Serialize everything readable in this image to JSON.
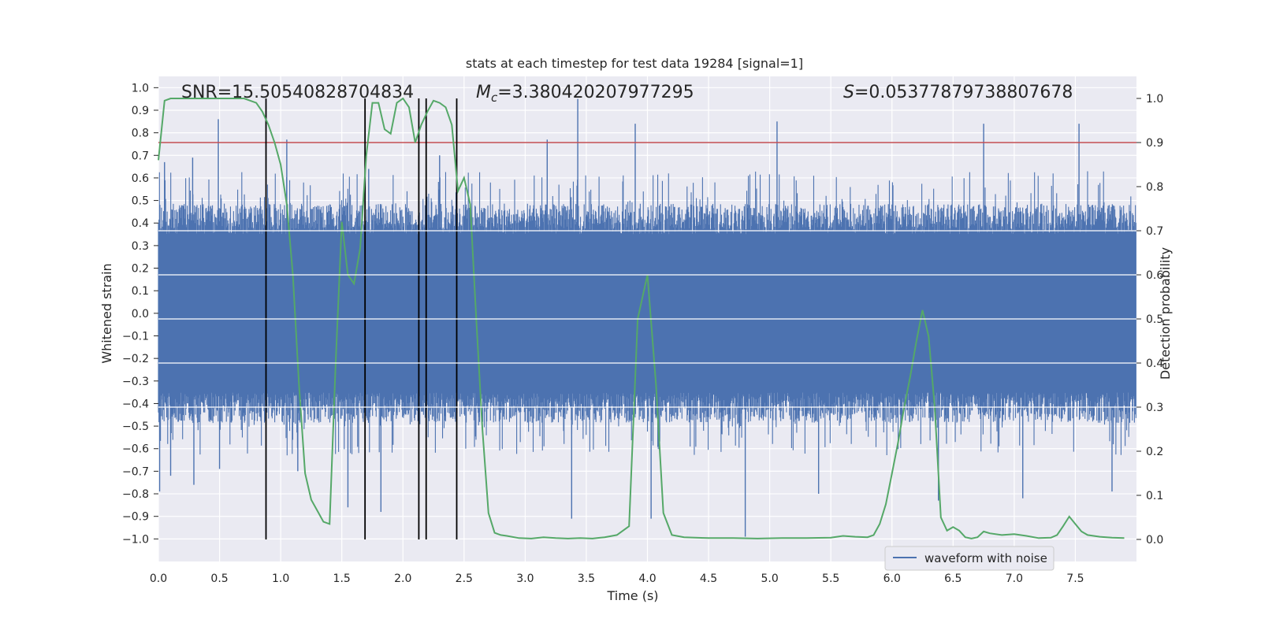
{
  "chart_data": {
    "type": "line",
    "title": "stats at each timestep for test data 19284 [signal=1]",
    "xlabel": "Time (s)",
    "ylabel": "Whitened strain",
    "y2label": "Detection probability",
    "xlim": [
      0.0,
      8.0
    ],
    "ylim": [
      -1.1,
      1.05
    ],
    "y2lim": [
      -0.05,
      1.05
    ],
    "xticks": [
      "0.0",
      "0.5",
      "1.0",
      "1.5",
      "2.0",
      "2.5",
      "3.0",
      "3.5",
      "4.0",
      "4.5",
      "5.0",
      "5.5",
      "6.0",
      "6.5",
      "7.0",
      "7.5"
    ],
    "yticks": [
      "−1.0",
      "−0.9",
      "−0.8",
      "−0.7",
      "−0.6",
      "−0.5",
      "−0.4",
      "−0.3",
      "−0.2",
      "−0.1",
      "0.0",
      "0.1",
      "0.2",
      "0.3",
      "0.4",
      "0.5",
      "0.6",
      "0.7",
      "0.8",
      "0.9",
      "1.0"
    ],
    "y2ticks": [
      "0.0",
      "0.1",
      "0.2",
      "0.3",
      "0.4",
      "0.5",
      "0.6",
      "0.7",
      "0.8",
      "0.9",
      "1.0"
    ],
    "annotations": {
      "snr": "SNR=15.50540828704834",
      "mc_symbol": "M",
      "mc_sub": "c",
      "mc_value": "=3.380420207977295",
      "s_symbol": "S",
      "s_value": "=0.05377879738807678"
    },
    "threshold": {
      "value": 0.9,
      "axis": "right",
      "color": "#c44e52"
    },
    "event_lines_x": [
      0.88,
      1.69,
      2.13,
      2.19,
      2.44
    ],
    "waveform": {
      "name": "waveform with noise",
      "color": "#4c72b0",
      "typical_envelope": 0.45,
      "spikes": [
        {
          "x": 0.01,
          "y": -0.79
        },
        {
          "x": 0.05,
          "y": 0.67
        },
        {
          "x": 0.1,
          "y": -0.72
        },
        {
          "x": 0.28,
          "y": 0.69
        },
        {
          "x": 0.29,
          "y": -0.76
        },
        {
          "x": 0.49,
          "y": 0.86
        },
        {
          "x": 0.5,
          "y": -0.69
        },
        {
          "x": 1.05,
          "y": 0.77
        },
        {
          "x": 1.14,
          "y": -0.7
        },
        {
          "x": 1.55,
          "y": -0.86
        },
        {
          "x": 1.72,
          "y": 0.64
        },
        {
          "x": 1.82,
          "y": -0.88
        },
        {
          "x": 2.3,
          "y": 0.7
        },
        {
          "x": 3.18,
          "y": 0.77
        },
        {
          "x": 3.38,
          "y": -0.91
        },
        {
          "x": 3.43,
          "y": 0.95
        },
        {
          "x": 3.9,
          "y": 0.84
        },
        {
          "x": 4.03,
          "y": -0.91
        },
        {
          "x": 4.8,
          "y": -0.99
        },
        {
          "x": 5.06,
          "y": 0.85
        },
        {
          "x": 5.4,
          "y": -0.8
        },
        {
          "x": 6.38,
          "y": -0.83
        },
        {
          "x": 6.75,
          "y": 0.84
        },
        {
          "x": 7.07,
          "y": -0.82
        },
        {
          "x": 7.53,
          "y": 0.84
        },
        {
          "x": 7.8,
          "y": -0.79
        }
      ]
    },
    "probability": {
      "color": "#55a868",
      "x": [
        0.0,
        0.05,
        0.1,
        0.2,
        0.3,
        0.4,
        0.5,
        0.6,
        0.7,
        0.8,
        0.85,
        0.9,
        0.95,
        1.0,
        1.05,
        1.1,
        1.15,
        1.2,
        1.25,
        1.3,
        1.35,
        1.4,
        1.45,
        1.5,
        1.55,
        1.6,
        1.65,
        1.7,
        1.75,
        1.8,
        1.85,
        1.9,
        1.95,
        2.0,
        2.05,
        2.1,
        2.15,
        2.2,
        2.25,
        2.3,
        2.35,
        2.4,
        2.45,
        2.5,
        2.55,
        2.6,
        2.65,
        2.7,
        2.75,
        2.8,
        2.85,
        2.95,
        3.05,
        3.15,
        3.25,
        3.35,
        3.45,
        3.55,
        3.65,
        3.75,
        3.85,
        3.92,
        4.0,
        4.07,
        4.13,
        4.2,
        4.3,
        4.5,
        4.7,
        4.9,
        5.1,
        5.3,
        5.5,
        5.6,
        5.7,
        5.8,
        5.85,
        5.9,
        5.95,
        6.0,
        6.05,
        6.1,
        6.15,
        6.2,
        6.25,
        6.3,
        6.35,
        6.4,
        6.45,
        6.5,
        6.55,
        6.6,
        6.65,
        6.7,
        6.75,
        6.8,
        6.9,
        7.0,
        7.1,
        7.2,
        7.3,
        7.35,
        7.4,
        7.45,
        7.5,
        7.55,
        7.6,
        7.7,
        7.8,
        7.9
      ],
      "y": [
        0.86,
        0.995,
        1.0,
        1.0,
        1.0,
        1.0,
        1.0,
        1.0,
        1.0,
        0.99,
        0.97,
        0.94,
        0.9,
        0.85,
        0.76,
        0.6,
        0.35,
        0.15,
        0.09,
        0.065,
        0.04,
        0.035,
        0.4,
        0.72,
        0.6,
        0.58,
        0.66,
        0.87,
        0.99,
        0.99,
        0.93,
        0.92,
        0.99,
        1.0,
        0.98,
        0.9,
        0.94,
        0.97,
        0.995,
        0.99,
        0.98,
        0.94,
        0.79,
        0.82,
        0.76,
        0.5,
        0.25,
        0.06,
        0.015,
        0.01,
        0.008,
        0.003,
        0.002,
        0.005,
        0.003,
        0.002,
        0.003,
        0.002,
        0.005,
        0.01,
        0.03,
        0.5,
        0.6,
        0.35,
        0.06,
        0.01,
        0.005,
        0.003,
        0.003,
        0.002,
        0.003,
        0.003,
        0.004,
        0.008,
        0.006,
        0.005,
        0.01,
        0.035,
        0.08,
        0.15,
        0.22,
        0.3,
        0.37,
        0.45,
        0.52,
        0.46,
        0.3,
        0.05,
        0.02,
        0.028,
        0.02,
        0.005,
        0.002,
        0.005,
        0.018,
        0.014,
        0.01,
        0.012,
        0.008,
        0.003,
        0.004,
        0.01,
        0.03,
        0.052,
        0.035,
        0.018,
        0.01,
        0.006,
        0.004,
        0.003
      ]
    }
  }
}
